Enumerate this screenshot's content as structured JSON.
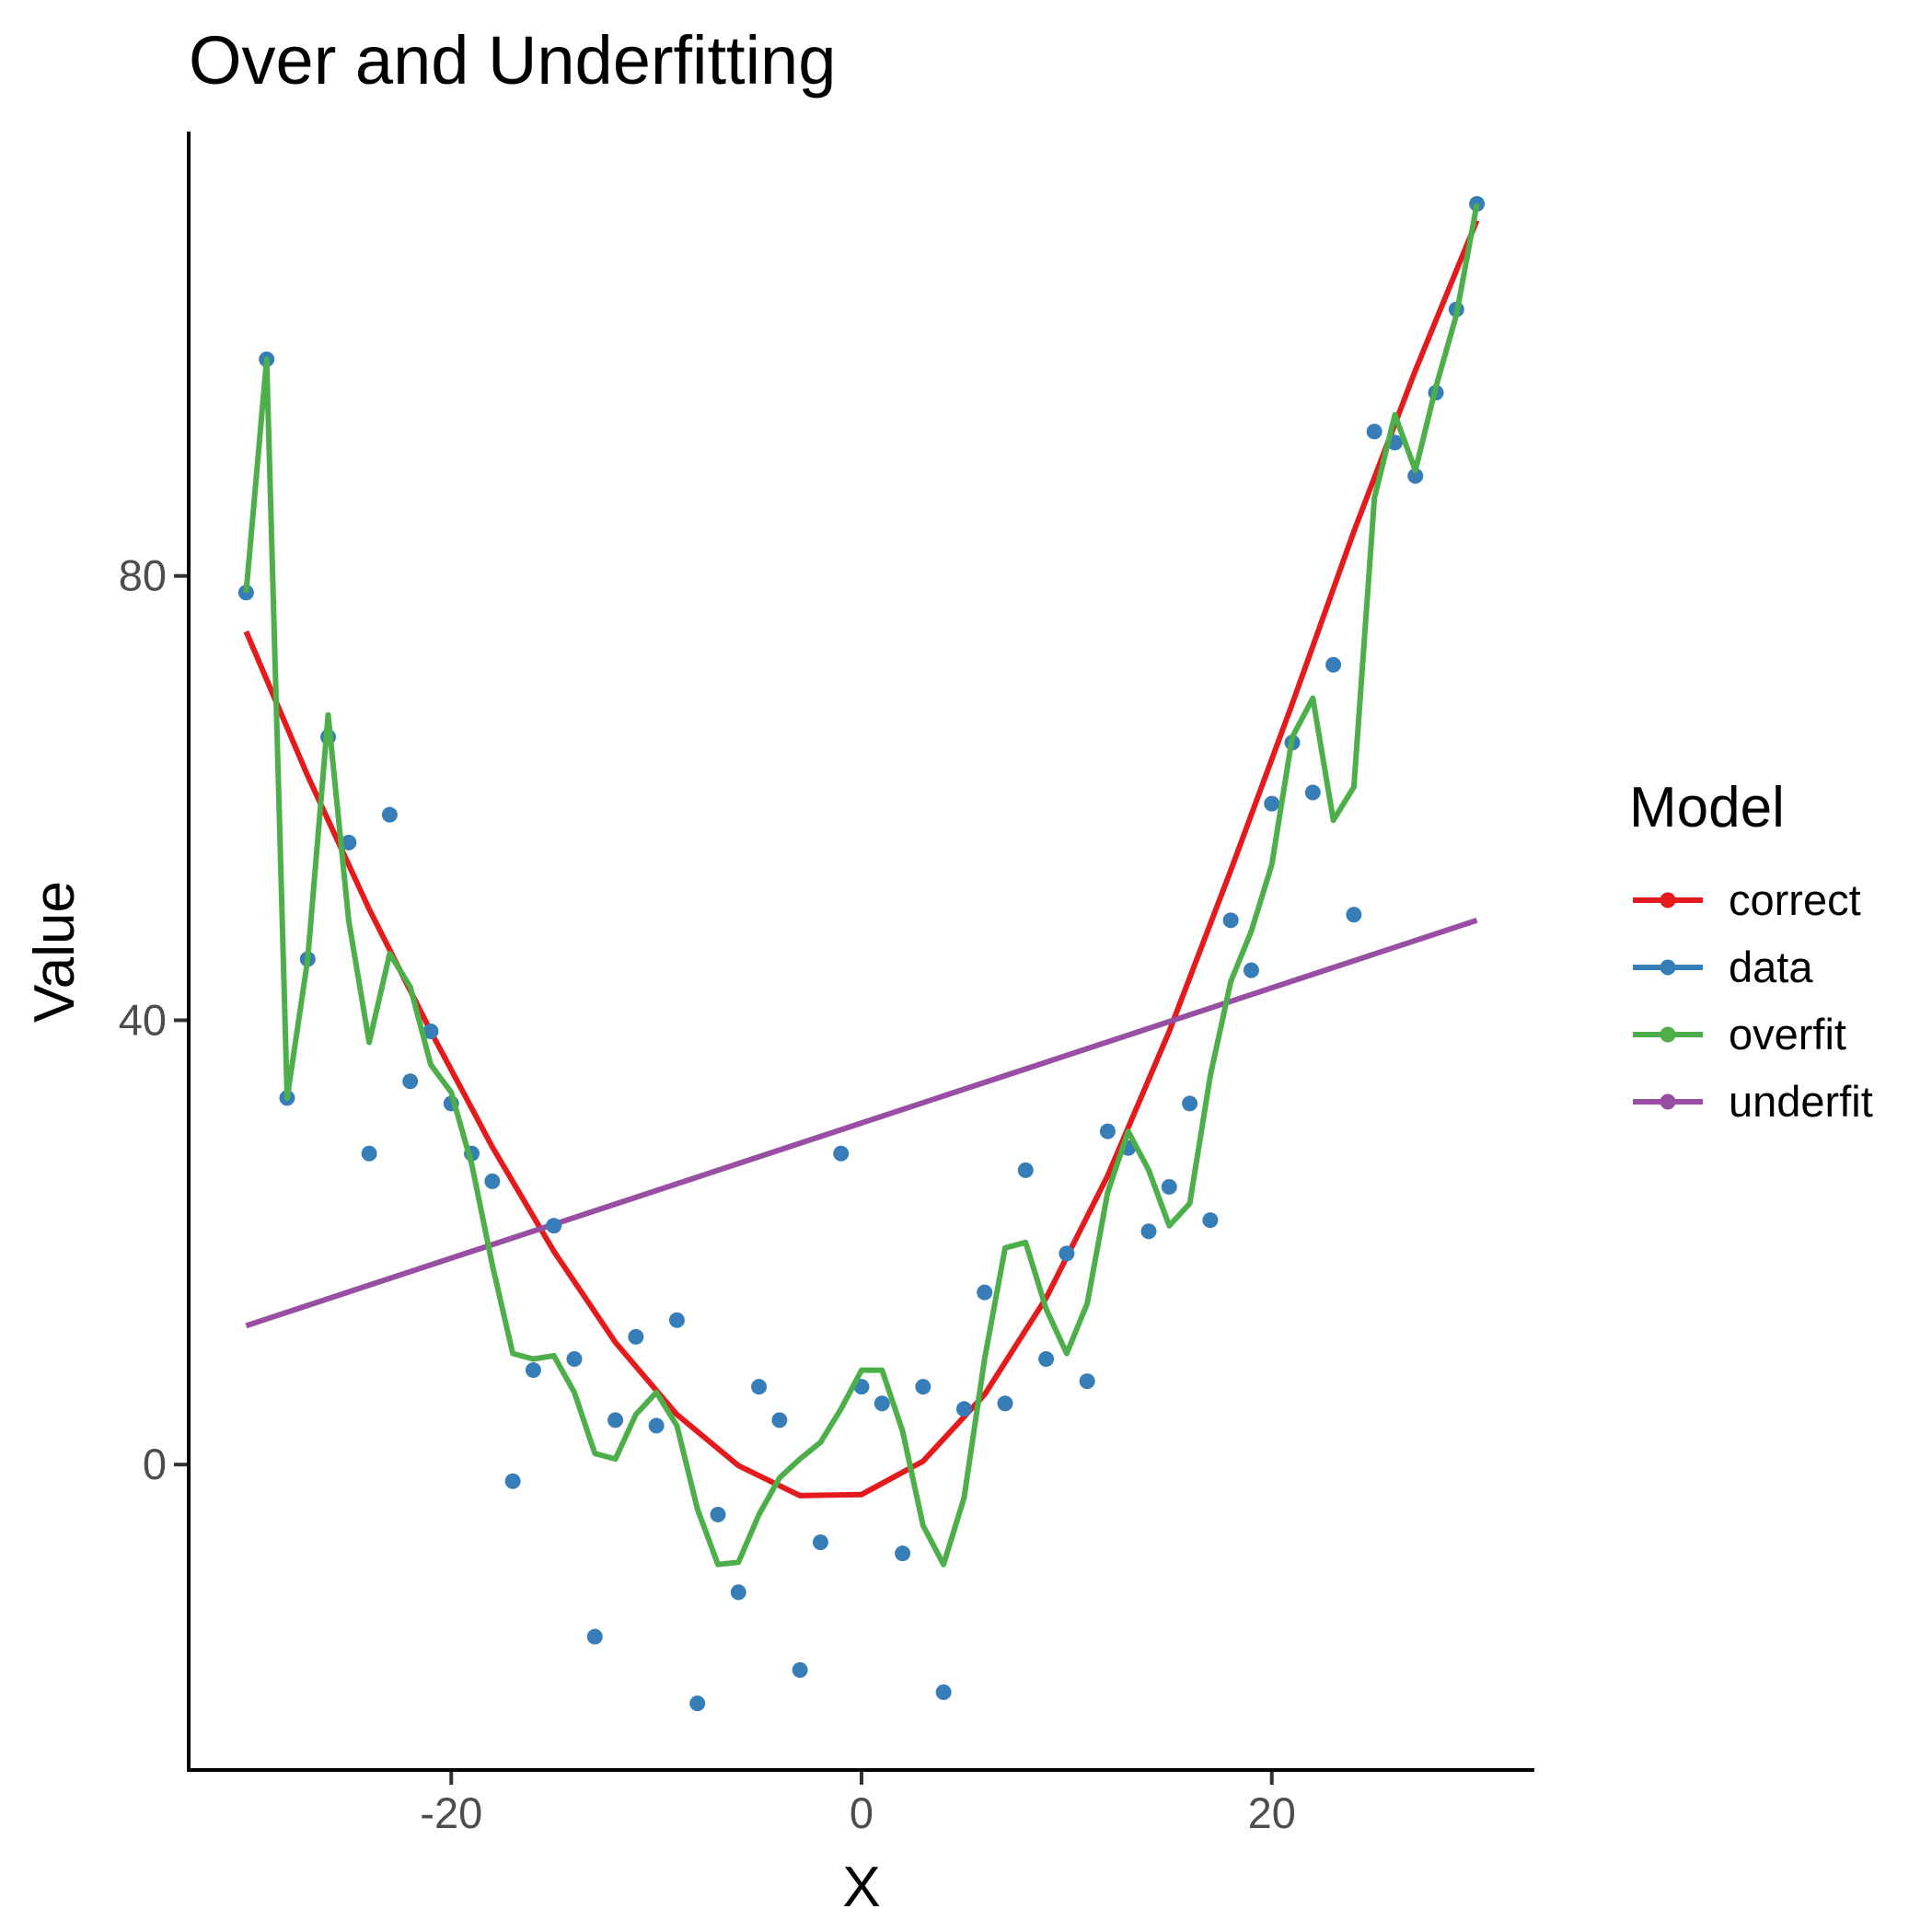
{
  "chart_data": {
    "type": "line",
    "title": "Over and Underfitting",
    "xlabel": "X",
    "ylabel": "Value",
    "xlim": [
      -32.8,
      32.8
    ],
    "ylim": [
      -27.5,
      120
    ],
    "x_ticks": [
      -20,
      0,
      20
    ],
    "x_tick_labels": [
      "-20",
      "0",
      "20"
    ],
    "y_ticks": [
      0,
      40,
      80
    ],
    "y_tick_labels": [
      "0",
      "40",
      "80"
    ],
    "grid": false,
    "legend": {
      "title": "Model",
      "position": "right"
    },
    "colors": {
      "correct": "#e41a1c",
      "data": "#377eb8",
      "overfit": "#4daf4a",
      "underfit": "#984ea3"
    },
    "series": [
      {
        "name": "correct",
        "kind": "line",
        "x": [
          -30,
          -27,
          -24,
          -21,
          -18,
          -15,
          -12,
          -9,
          -6,
          -3,
          0,
          3,
          6,
          9,
          12,
          15,
          18,
          21,
          24,
          27,
          30
        ],
        "y": [
          75.0,
          62.0,
          50.0,
          39.0,
          28.6,
          19.2,
          11.0,
          4.5,
          -0.1,
          -2.8,
          -2.7,
          0.3,
          6.3,
          15.0,
          26.0,
          39.0,
          53.5,
          68.5,
          84.0,
          98.5,
          112.0
        ]
      },
      {
        "name": "data",
        "kind": "scatter",
        "x": [
          -30,
          -29,
          -28,
          -27,
          -26,
          -25,
          -24,
          -23,
          -22,
          -21,
          -20,
          -19,
          -18,
          -17,
          -16,
          -15,
          -14,
          -13,
          -12,
          -11,
          -10,
          -9,
          -8,
          -7,
          -6,
          -5,
          -4,
          -3,
          -2,
          -1,
          0,
          1,
          2,
          3,
          4,
          5,
          6,
          7,
          8,
          9,
          10,
          11,
          12,
          13,
          14,
          15,
          16,
          17,
          18,
          19,
          20,
          21,
          22,
          23,
          24,
          25,
          26,
          27,
          28,
          29,
          30
        ],
        "y": [
          78.5,
          99.5,
          33.0,
          45.5,
          65.5,
          56.0,
          28.0,
          58.5,
          34.5,
          39.0,
          32.5,
          28.0,
          25.5,
          -1.5,
          8.5,
          21.5,
          9.5,
          -15.5,
          4.0,
          11.5,
          3.5,
          13.0,
          -21.5,
          -4.5,
          -11.5,
          7.0,
          4.0,
          -18.5,
          -7.0,
          28.0,
          7.0,
          5.5,
          -8.0,
          7.0,
          -20.5,
          5.0,
          15.5,
          5.5,
          26.5,
          9.5,
          19.0,
          7.5,
          30.0,
          28.5,
          21.0,
          25.0,
          32.5,
          22.0,
          49.0,
          44.5,
          59.5,
          65.0,
          60.5,
          72.0,
          49.5,
          93.0,
          92.0,
          89.0,
          96.5,
          104.0,
          113.5
        ]
      },
      {
        "name": "overfit",
        "kind": "line",
        "x": [
          -30,
          -29,
          -28,
          -27,
          -26,
          -25,
          -24,
          -23,
          -22,
          -21,
          -20,
          -19,
          -18,
          -17,
          -16,
          -15,
          -14,
          -13,
          -12,
          -11,
          -10,
          -9,
          -8,
          -7,
          -6,
          -5,
          -4,
          -3,
          -2,
          -1,
          0,
          1,
          2,
          3,
          4,
          5,
          6,
          7,
          8,
          9,
          10,
          11,
          12,
          13,
          14,
          15,
          16,
          17,
          18,
          19,
          20,
          21,
          22,
          23,
          24,
          25,
          26,
          27,
          28,
          29,
          30
        ],
        "y": [
          78.5,
          99.5,
          33.0,
          45.5,
          67.5,
          49.0,
          38.0,
          46.0,
          43.0,
          36.0,
          33.5,
          27.0,
          18.0,
          10.0,
          9.5,
          9.8,
          6.5,
          1.0,
          0.5,
          4.5,
          6.5,
          3.5,
          -4.0,
          -9.0,
          -8.8,
          -4.5,
          -1.2,
          0.5,
          2.0,
          5.0,
          8.5,
          8.5,
          3.0,
          -5.5,
          -9.0,
          -3.0,
          9.5,
          19.5,
          20.0,
          14.0,
          10.0,
          14.5,
          24.5,
          30.0,
          26.5,
          21.5,
          23.5,
          35.0,
          43.5,
          48.0,
          54.0,
          65.5,
          69.0,
          58.0,
          61.0,
          87.0,
          94.5,
          89.5,
          97.0,
          103.5,
          113.5
        ]
      },
      {
        "name": "underfit",
        "kind": "line",
        "x": [
          -30,
          30
        ],
        "y": [
          12.5,
          49.0
        ]
      }
    ]
  }
}
